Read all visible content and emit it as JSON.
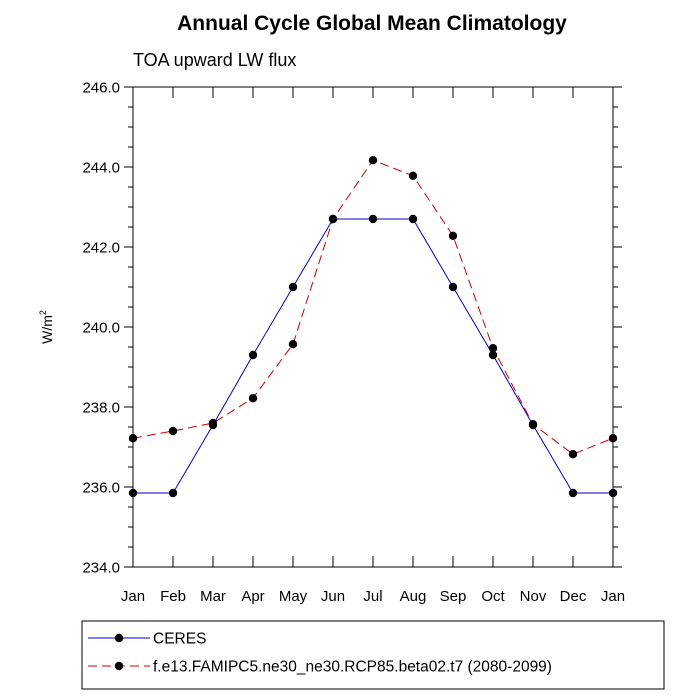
{
  "chart_data": {
    "type": "line",
    "title": "Annual Cycle Global Mean Climatology",
    "subtitle": "TOA upward LW flux",
    "ylabel": "W/m",
    "ylabel_superscript": "2",
    "xlabel": "",
    "categories": [
      "Jan",
      "Feb",
      "Mar",
      "Apr",
      "May",
      "Jun",
      "Jul",
      "Aug",
      "Sep",
      "Oct",
      "Nov",
      "Dec",
      "Jan"
    ],
    "ylim": [
      234.0,
      246.0
    ],
    "yticks": [
      "234.0",
      "236.0",
      "238.0",
      "240.0",
      "242.0",
      "244.0",
      "246.0"
    ],
    "grid": false,
    "legend_position": "bottom",
    "series": [
      {
        "name": "CERES",
        "color": "#0000cc",
        "dash": "solid",
        "values": [
          235.85,
          235.85,
          237.55,
          239.3,
          241.0,
          242.7,
          242.7,
          242.7,
          241.0,
          239.3,
          237.55,
          235.85,
          235.85
        ]
      },
      {
        "name": "f.e13.FAMIPC5.ne30_ne30.RCP85.beta02.t7 (2080-2099)",
        "color": "#cc0000",
        "dash": "dashed",
        "values": [
          237.22,
          237.4,
          237.6,
          238.22,
          239.57,
          242.7,
          244.17,
          243.78,
          242.28,
          239.47,
          237.57,
          236.82,
          237.22
        ]
      }
    ]
  }
}
